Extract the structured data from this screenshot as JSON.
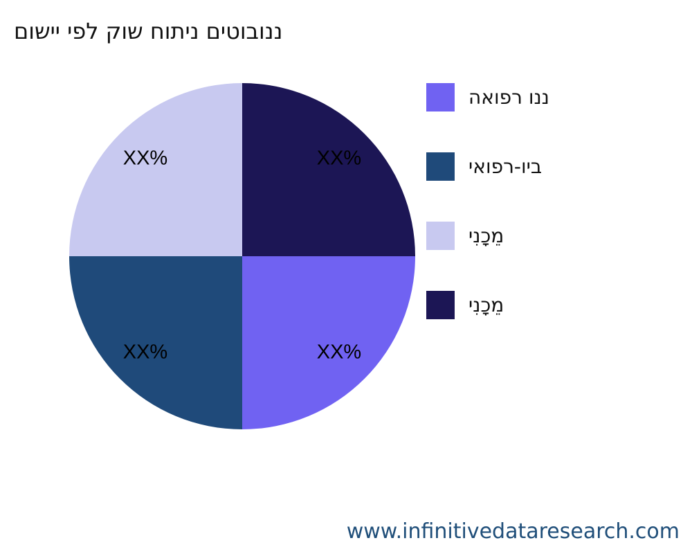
{
  "chart_data": {
    "type": "pie",
    "title": "ננובוטים ניתוח שוק לפי יישום",
    "categories": [
      "ננו רפואה",
      "ביו-רפואי",
      "מֵכָנִי",
      "מֵכָנִי"
    ],
    "values": [
      25,
      25,
      25,
      25
    ],
    "data_labels": [
      "XX%",
      "XX%",
      "XX%",
      "XX%"
    ],
    "colors": [
      "#7062f2",
      "#1f4a7a",
      "#c8c9f0",
      "#1c1655"
    ],
    "legend_position": "right"
  },
  "footer": {
    "website": "www.infinitivedataresearch.com"
  }
}
